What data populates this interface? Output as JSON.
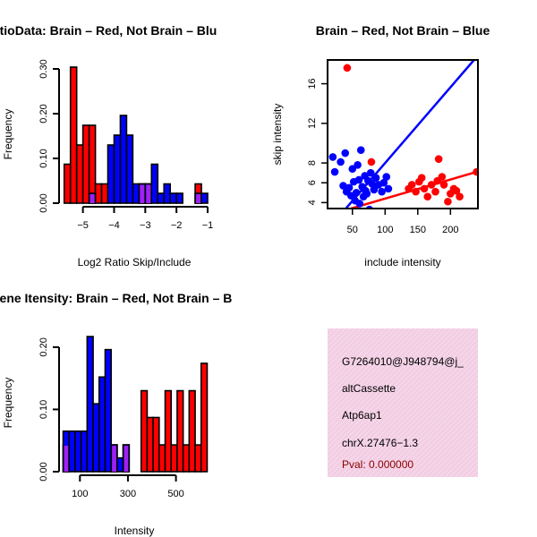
{
  "colors": {
    "red": "#ff0000",
    "blue": "#0000ff",
    "purple": "#a020f0",
    "border": "#000000",
    "pink": "#f2cde3",
    "pval": "#8b0000"
  },
  "chart_data": [
    {
      "id": "ratio_hist",
      "type": "bar",
      "title": "RatioData: Brain – Red, Not Brain – Blu",
      "xlabel": "Log2 Ratio Skip/Include",
      "ylabel": "Frequency",
      "xlim": [
        -5.65,
        -1.0
      ],
      "ylim": [
        0,
        0.32
      ],
      "xticks": [
        -5,
        -4,
        -3,
        -2,
        -1
      ],
      "xtick_labels": [
        "−5",
        "−4",
        "−3",
        "−2",
        "−1"
      ],
      "yticks": [
        0.0,
        0.1,
        0.2,
        0.3
      ],
      "ytick_labels": [
        "0.00",
        "0.10",
        "0.20",
        "0.30"
      ],
      "bin_width": 0.2,
      "series": [
        {
          "name": "Brain",
          "color": "red",
          "x_start": [
            -5.6,
            -5.4,
            -5.2,
            -5.0,
            -4.8,
            -4.6,
            -4.4,
            -3.2,
            -3.0,
            -1.4
          ],
          "values": [
            0.087,
            0.304,
            0.13,
            0.174,
            0.174,
            0.043,
            0.043,
            0.043,
            0.043,
            0.043
          ]
        },
        {
          "name": "Not Brain",
          "color": "blue",
          "x_start": [
            -4.8,
            -4.2,
            -4.0,
            -3.8,
            -3.6,
            -3.4,
            -3.2,
            -3.0,
            -2.8,
            -2.6,
            -2.4,
            -2.2,
            -2.0,
            -1.8,
            -1.6,
            -1.4,
            -1.2
          ],
          "values": [
            0.022,
            0.13,
            0.152,
            0.196,
            0.152,
            0.043,
            0.043,
            0.043,
            0.087,
            0.022,
            0.043,
            0.022,
            0.022,
            0.0,
            0.0,
            0.022,
            0.022
          ]
        }
      ]
    },
    {
      "id": "intensity_scatter",
      "type": "scatter",
      "title": "Brain – Red, Not Brain – Blue",
      "xlabel": "include intensity",
      "ylabel": "skip intensity",
      "xlim": [
        12,
        242
      ],
      "ylim": [
        3.4,
        18.4
      ],
      "xticks": [
        50,
        100,
        150,
        200
      ],
      "xtick_labels": [
        "50",
        "100",
        "150",
        "200"
      ],
      "yticks": [
        4,
        6,
        8,
        12,
        16
      ],
      "ytick_labels": [
        "4",
        "6",
        "8",
        "12",
        "16"
      ],
      "series": [
        {
          "name": "Brain",
          "color": "red",
          "x": [
            42,
            79,
            136,
            141,
            147,
            152,
            156,
            160,
            165,
            171,
            177,
            180,
            182,
            187,
            190,
            196,
            200,
            205,
            209,
            214,
            240
          ],
          "y": [
            17.6,
            8.1,
            5.4,
            5.8,
            5.1,
            6.1,
            6.5,
            5.4,
            4.6,
            5.8,
            5.1,
            6.2,
            8.4,
            6.6,
            5.8,
            4.1,
            4.9,
            5.4,
            5.2,
            4.6,
            7.1
          ],
          "fit": [
            [
              48,
              3.4
            ],
            [
              240,
              7.1
            ]
          ]
        },
        {
          "name": "Not Brain",
          "color": "blue",
          "x": [
            20,
            23,
            32,
            36,
            39,
            41,
            45,
            48,
            50,
            52,
            54,
            56,
            58,
            60,
            61,
            63,
            65,
            67,
            69,
            70,
            72,
            74,
            76,
            78,
            80,
            83,
            86,
            90,
            95,
            98,
            102,
            105
          ],
          "y": [
            8.6,
            7.1,
            8.1,
            5.7,
            9.0,
            5.1,
            5.5,
            4.7,
            7.4,
            6.1,
            4.2,
            5.0,
            7.8,
            6.3,
            3.9,
            9.3,
            5.6,
            4.6,
            6.7,
            5.2,
            4.9,
            6.2,
            3.3,
            7.0,
            5.9,
            5.3,
            6.5,
            5.8,
            5.1,
            6.0,
            6.6,
            5.4
          ],
          "fit": [
            [
              40,
              3.4
            ],
            [
              236,
              18.4
            ]
          ]
        }
      ]
    },
    {
      "id": "intensity_hist",
      "type": "bar",
      "title": "Gene Itensity: Brain – Red, Not Brain – B",
      "xlabel": "Intensity",
      "ylabel": "Frequency",
      "xlim": [
        28,
        632
      ],
      "ylim": [
        0,
        0.23
      ],
      "xticks": [
        100,
        300,
        500
      ],
      "xtick_labels": [
        "100",
        "300",
        "500"
      ],
      "yticks": [
        0.0,
        0.1,
        0.2
      ],
      "ytick_labels": [
        "0.00",
        "0.10",
        "0.20"
      ],
      "bin_width": 25,
      "series": [
        {
          "name": "Brain",
          "color": "red",
          "x_start": [
            30,
            230,
            280,
            355,
            380,
            405,
            430,
            455,
            480,
            505,
            530,
            555,
            580,
            605
          ],
          "values": [
            0.043,
            0.043,
            0.043,
            0.13,
            0.087,
            0.087,
            0.043,
            0.13,
            0.043,
            0.13,
            0.043,
            0.13,
            0.043,
            0.174
          ]
        },
        {
          "name": "Not Brain",
          "color": "blue",
          "x_start": [
            30,
            55,
            80,
            105,
            130,
            155,
            180,
            205,
            230,
            255,
            280
          ],
          "values": [
            0.065,
            0.065,
            0.065,
            0.065,
            0.217,
            0.109,
            0.152,
            0.196,
            0.043,
            0.022,
            0.043
          ]
        }
      ]
    }
  ],
  "info_panel": {
    "lines": [
      "G7264010@J948794@j_",
      "altCassette",
      "Atp6ap1",
      "chrX.27476−1.3"
    ],
    "pval": "Pval: 0.000000"
  }
}
